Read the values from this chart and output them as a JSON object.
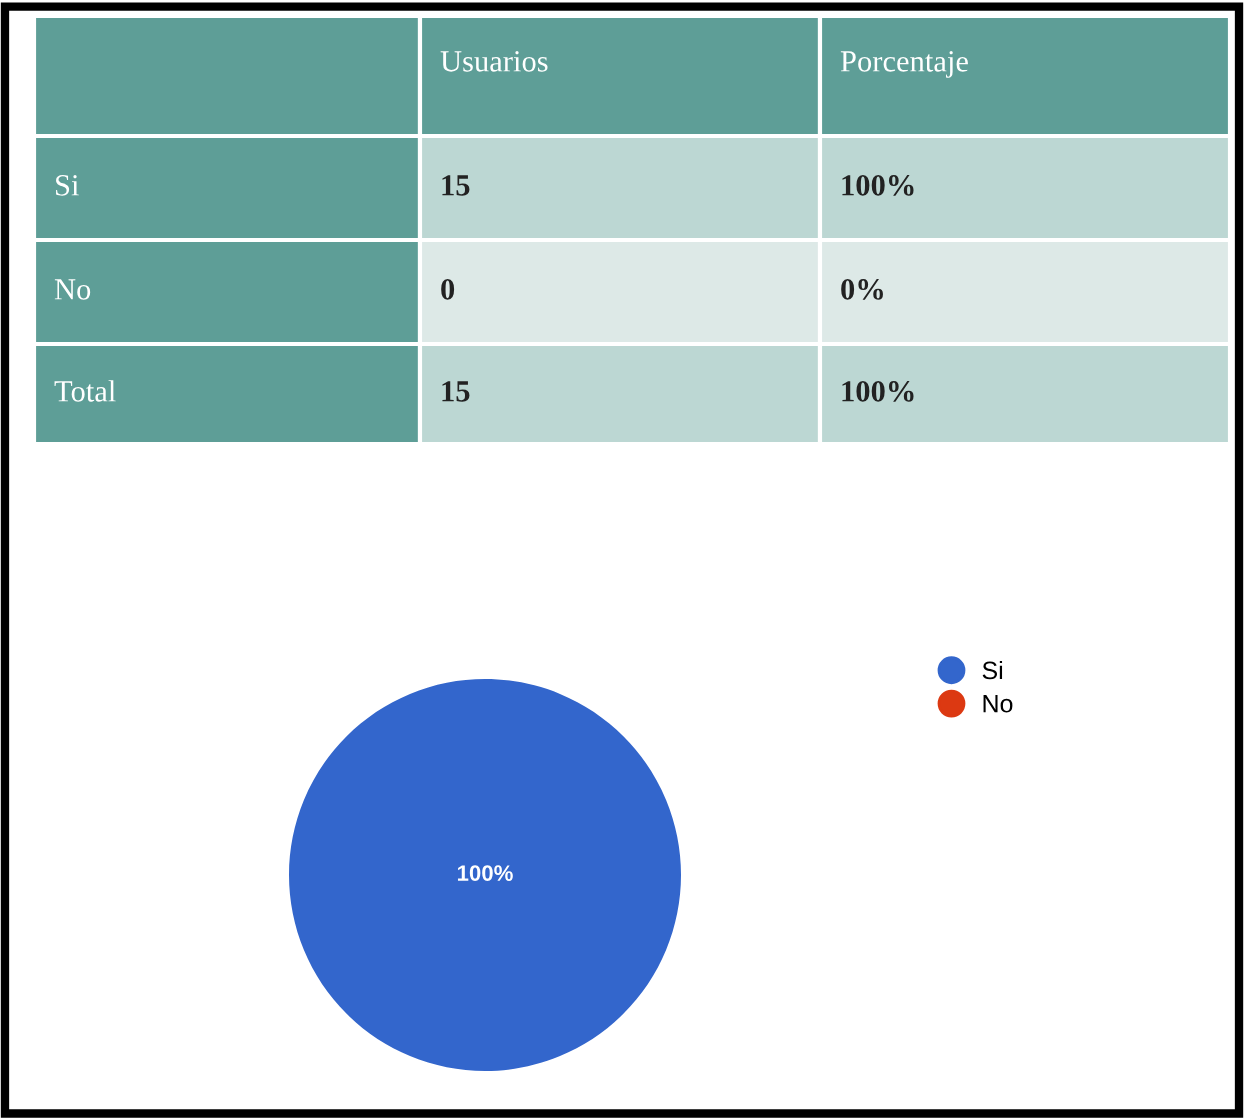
{
  "chart_data": [
    {
      "type": "other",
      "annotations": [
        "Usuarios",
        "Porcentaje",
        "Si",
        "15",
        "100%",
        "No",
        "0",
        "0%",
        "Total",
        "15",
        "100%"
      ]
    },
    {
      "type": "pie",
      "categories": [
        "Si",
        "No"
      ],
      "values": [
        100,
        0
      ],
      "colors": [
        "#3366cc",
        "#dc3912"
      ],
      "value_labels": [
        "100%",
        null
      ],
      "legend": "right"
    }
  ]
}
